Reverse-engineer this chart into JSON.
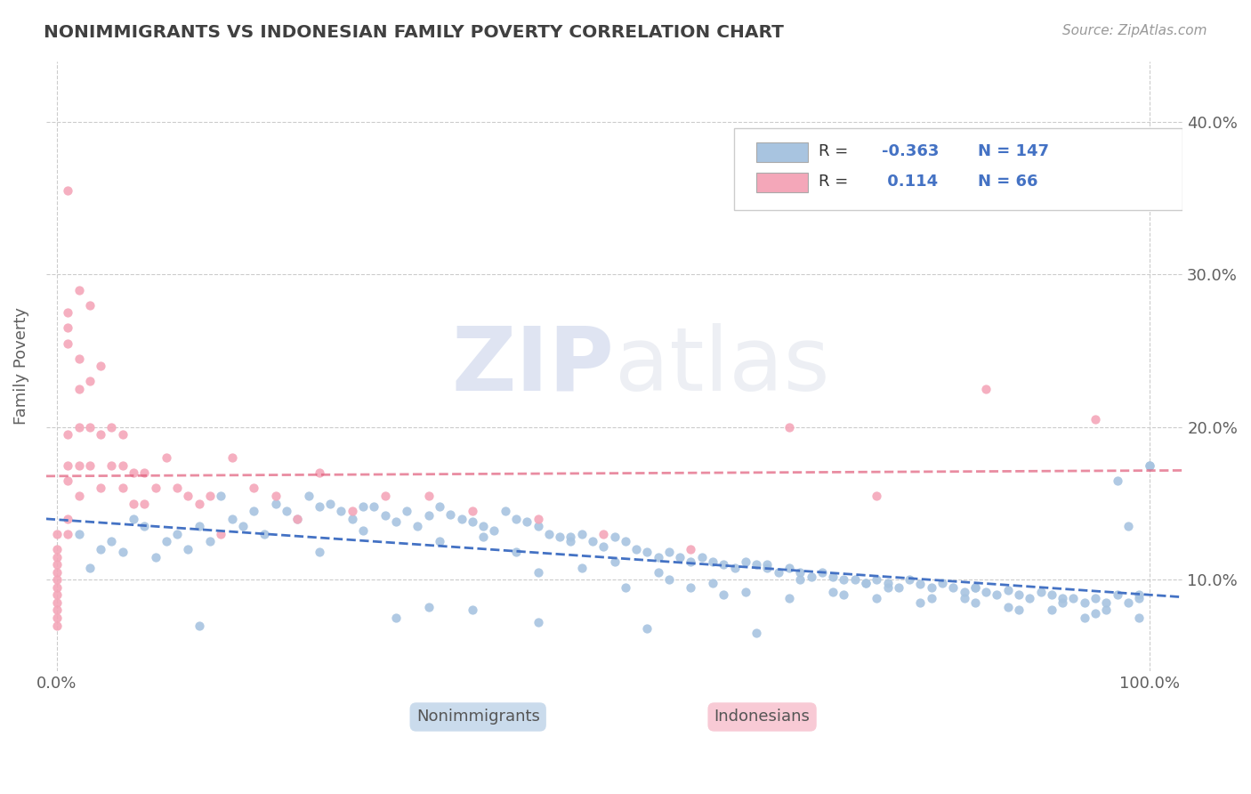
{
  "title": "NONIMMIGRANTS VS INDONESIAN FAMILY POVERTY CORRELATION CHART",
  "source_text": "Source: ZipAtlas.com",
  "ylabel": "Family Poverty",
  "legend_label1": "Nonimmigrants",
  "legend_label2": "Indonesians",
  "R1": -0.363,
  "N1": 147,
  "R2": 0.114,
  "N2": 66,
  "blue_color": "#a8c4e0",
  "blue_line_color": "#4472c4",
  "pink_color": "#f4a7b9",
  "pink_line_color": "#e05c7a",
  "blue_x": [
    0.02,
    0.04,
    0.05,
    0.06,
    0.07,
    0.08,
    0.09,
    0.1,
    0.11,
    0.12,
    0.13,
    0.14,
    0.15,
    0.16,
    0.17,
    0.18,
    0.19,
    0.2,
    0.21,
    0.22,
    0.23,
    0.24,
    0.25,
    0.26,
    0.27,
    0.28,
    0.29,
    0.3,
    0.31,
    0.32,
    0.33,
    0.34,
    0.35,
    0.36,
    0.37,
    0.38,
    0.39,
    0.4,
    0.41,
    0.42,
    0.43,
    0.44,
    0.45,
    0.46,
    0.47,
    0.48,
    0.49,
    0.5,
    0.51,
    0.52,
    0.53,
    0.54,
    0.55,
    0.56,
    0.57,
    0.58,
    0.59,
    0.6,
    0.61,
    0.62,
    0.63,
    0.64,
    0.65,
    0.66,
    0.67,
    0.68,
    0.69,
    0.7,
    0.71,
    0.72,
    0.73,
    0.74,
    0.75,
    0.76,
    0.77,
    0.78,
    0.79,
    0.8,
    0.81,
    0.82,
    0.83,
    0.84,
    0.85,
    0.86,
    0.87,
    0.88,
    0.89,
    0.9,
    0.91,
    0.92,
    0.93,
    0.94,
    0.95,
    0.96,
    0.97,
    0.98,
    0.99,
    1.0,
    0.03,
    0.13,
    0.24,
    0.28,
    0.31,
    0.35,
    0.39,
    0.42,
    0.47,
    0.51,
    0.55,
    0.58,
    0.61,
    0.65,
    0.68,
    0.72,
    0.76,
    0.8,
    0.84,
    0.88,
    0.92,
    0.96,
    0.34,
    0.38,
    0.44,
    0.48,
    0.52,
    0.56,
    0.6,
    0.63,
    0.67,
    0.71,
    0.75,
    0.79,
    0.83,
    0.87,
    0.91,
    0.95,
    0.99,
    0.44,
    0.54,
    0.64,
    0.74,
    0.84,
    0.94,
    0.97,
    0.98,
    1.0,
    0.99
  ],
  "blue_y": [
    0.13,
    0.12,
    0.125,
    0.118,
    0.14,
    0.135,
    0.115,
    0.125,
    0.13,
    0.12,
    0.135,
    0.125,
    0.155,
    0.14,
    0.135,
    0.145,
    0.13,
    0.15,
    0.145,
    0.14,
    0.155,
    0.148,
    0.15,
    0.145,
    0.14,
    0.148,
    0.148,
    0.142,
    0.138,
    0.145,
    0.135,
    0.142,
    0.148,
    0.143,
    0.14,
    0.138,
    0.135,
    0.132,
    0.145,
    0.14,
    0.138,
    0.135,
    0.13,
    0.128,
    0.125,
    0.13,
    0.125,
    0.122,
    0.128,
    0.125,
    0.12,
    0.118,
    0.115,
    0.118,
    0.115,
    0.112,
    0.115,
    0.112,
    0.11,
    0.108,
    0.112,
    0.11,
    0.108,
    0.105,
    0.108,
    0.105,
    0.102,
    0.105,
    0.102,
    0.1,
    0.1,
    0.098,
    0.1,
    0.098,
    0.095,
    0.1,
    0.097,
    0.095,
    0.098,
    0.095,
    0.092,
    0.095,
    0.092,
    0.09,
    0.093,
    0.09,
    0.088,
    0.092,
    0.09,
    0.088,
    0.088,
    0.085,
    0.088,
    0.085,
    0.09,
    0.085,
    0.088,
    0.175,
    0.108,
    0.07,
    0.118,
    0.132,
    0.075,
    0.125,
    0.128,
    0.118,
    0.128,
    0.112,
    0.105,
    0.095,
    0.09,
    0.11,
    0.1,
    0.09,
    0.095,
    0.088,
    0.085,
    0.08,
    0.085,
    0.08,
    0.082,
    0.08,
    0.105,
    0.108,
    0.095,
    0.1,
    0.098,
    0.092,
    0.088,
    0.092,
    0.088,
    0.085,
    0.088,
    0.082,
    0.08,
    0.078,
    0.075,
    0.072,
    0.068,
    0.065,
    0.098,
    0.095,
    0.075,
    0.165,
    0.135,
    0.175,
    0.09
  ],
  "pink_x": [
    0.0,
    0.0,
    0.0,
    0.0,
    0.0,
    0.0,
    0.0,
    0.0,
    0.0,
    0.0,
    0.0,
    0.0,
    0.01,
    0.01,
    0.01,
    0.01,
    0.01,
    0.01,
    0.01,
    0.01,
    0.01,
    0.02,
    0.02,
    0.02,
    0.02,
    0.02,
    0.02,
    0.03,
    0.03,
    0.03,
    0.03,
    0.04,
    0.04,
    0.04,
    0.05,
    0.05,
    0.06,
    0.06,
    0.06,
    0.07,
    0.07,
    0.08,
    0.08,
    0.09,
    0.1,
    0.11,
    0.12,
    0.13,
    0.14,
    0.15,
    0.16,
    0.18,
    0.2,
    0.22,
    0.24,
    0.27,
    0.3,
    0.34,
    0.38,
    0.44,
    0.5,
    0.58,
    0.67,
    0.75,
    0.85,
    0.95
  ],
  "pink_y": [
    0.13,
    0.12,
    0.115,
    0.11,
    0.105,
    0.1,
    0.095,
    0.09,
    0.085,
    0.08,
    0.075,
    0.07,
    0.355,
    0.275,
    0.265,
    0.255,
    0.195,
    0.175,
    0.165,
    0.14,
    0.13,
    0.29,
    0.245,
    0.225,
    0.2,
    0.175,
    0.155,
    0.28,
    0.23,
    0.2,
    0.175,
    0.24,
    0.195,
    0.16,
    0.2,
    0.175,
    0.195,
    0.175,
    0.16,
    0.17,
    0.15,
    0.17,
    0.15,
    0.16,
    0.18,
    0.16,
    0.155,
    0.15,
    0.155,
    0.13,
    0.18,
    0.16,
    0.155,
    0.14,
    0.17,
    0.145,
    0.155,
    0.155,
    0.145,
    0.14,
    0.13,
    0.12,
    0.2,
    0.155,
    0.225,
    0.205
  ],
  "watermark_zip": "ZIP",
  "watermark_atlas": "atlas",
  "ylim_min": 0.04,
  "ylim_max": 0.44,
  "xlim_min": -0.01,
  "xlim_max": 1.03,
  "ytick_positions": [
    0.1,
    0.2,
    0.3,
    0.4
  ],
  "ytick_labels": [
    "10.0%",
    "20.0%",
    "30.0%",
    "40.0%"
  ],
  "xtick_positions": [
    0.0,
    1.0
  ],
  "xtick_labels": [
    "0.0%",
    "100.0%"
  ],
  "grid_color": "#cccccc",
  "background_color": "#ffffff",
  "title_color": "#404040",
  "axis_label_color": "#606060",
  "source_color": "#999999"
}
